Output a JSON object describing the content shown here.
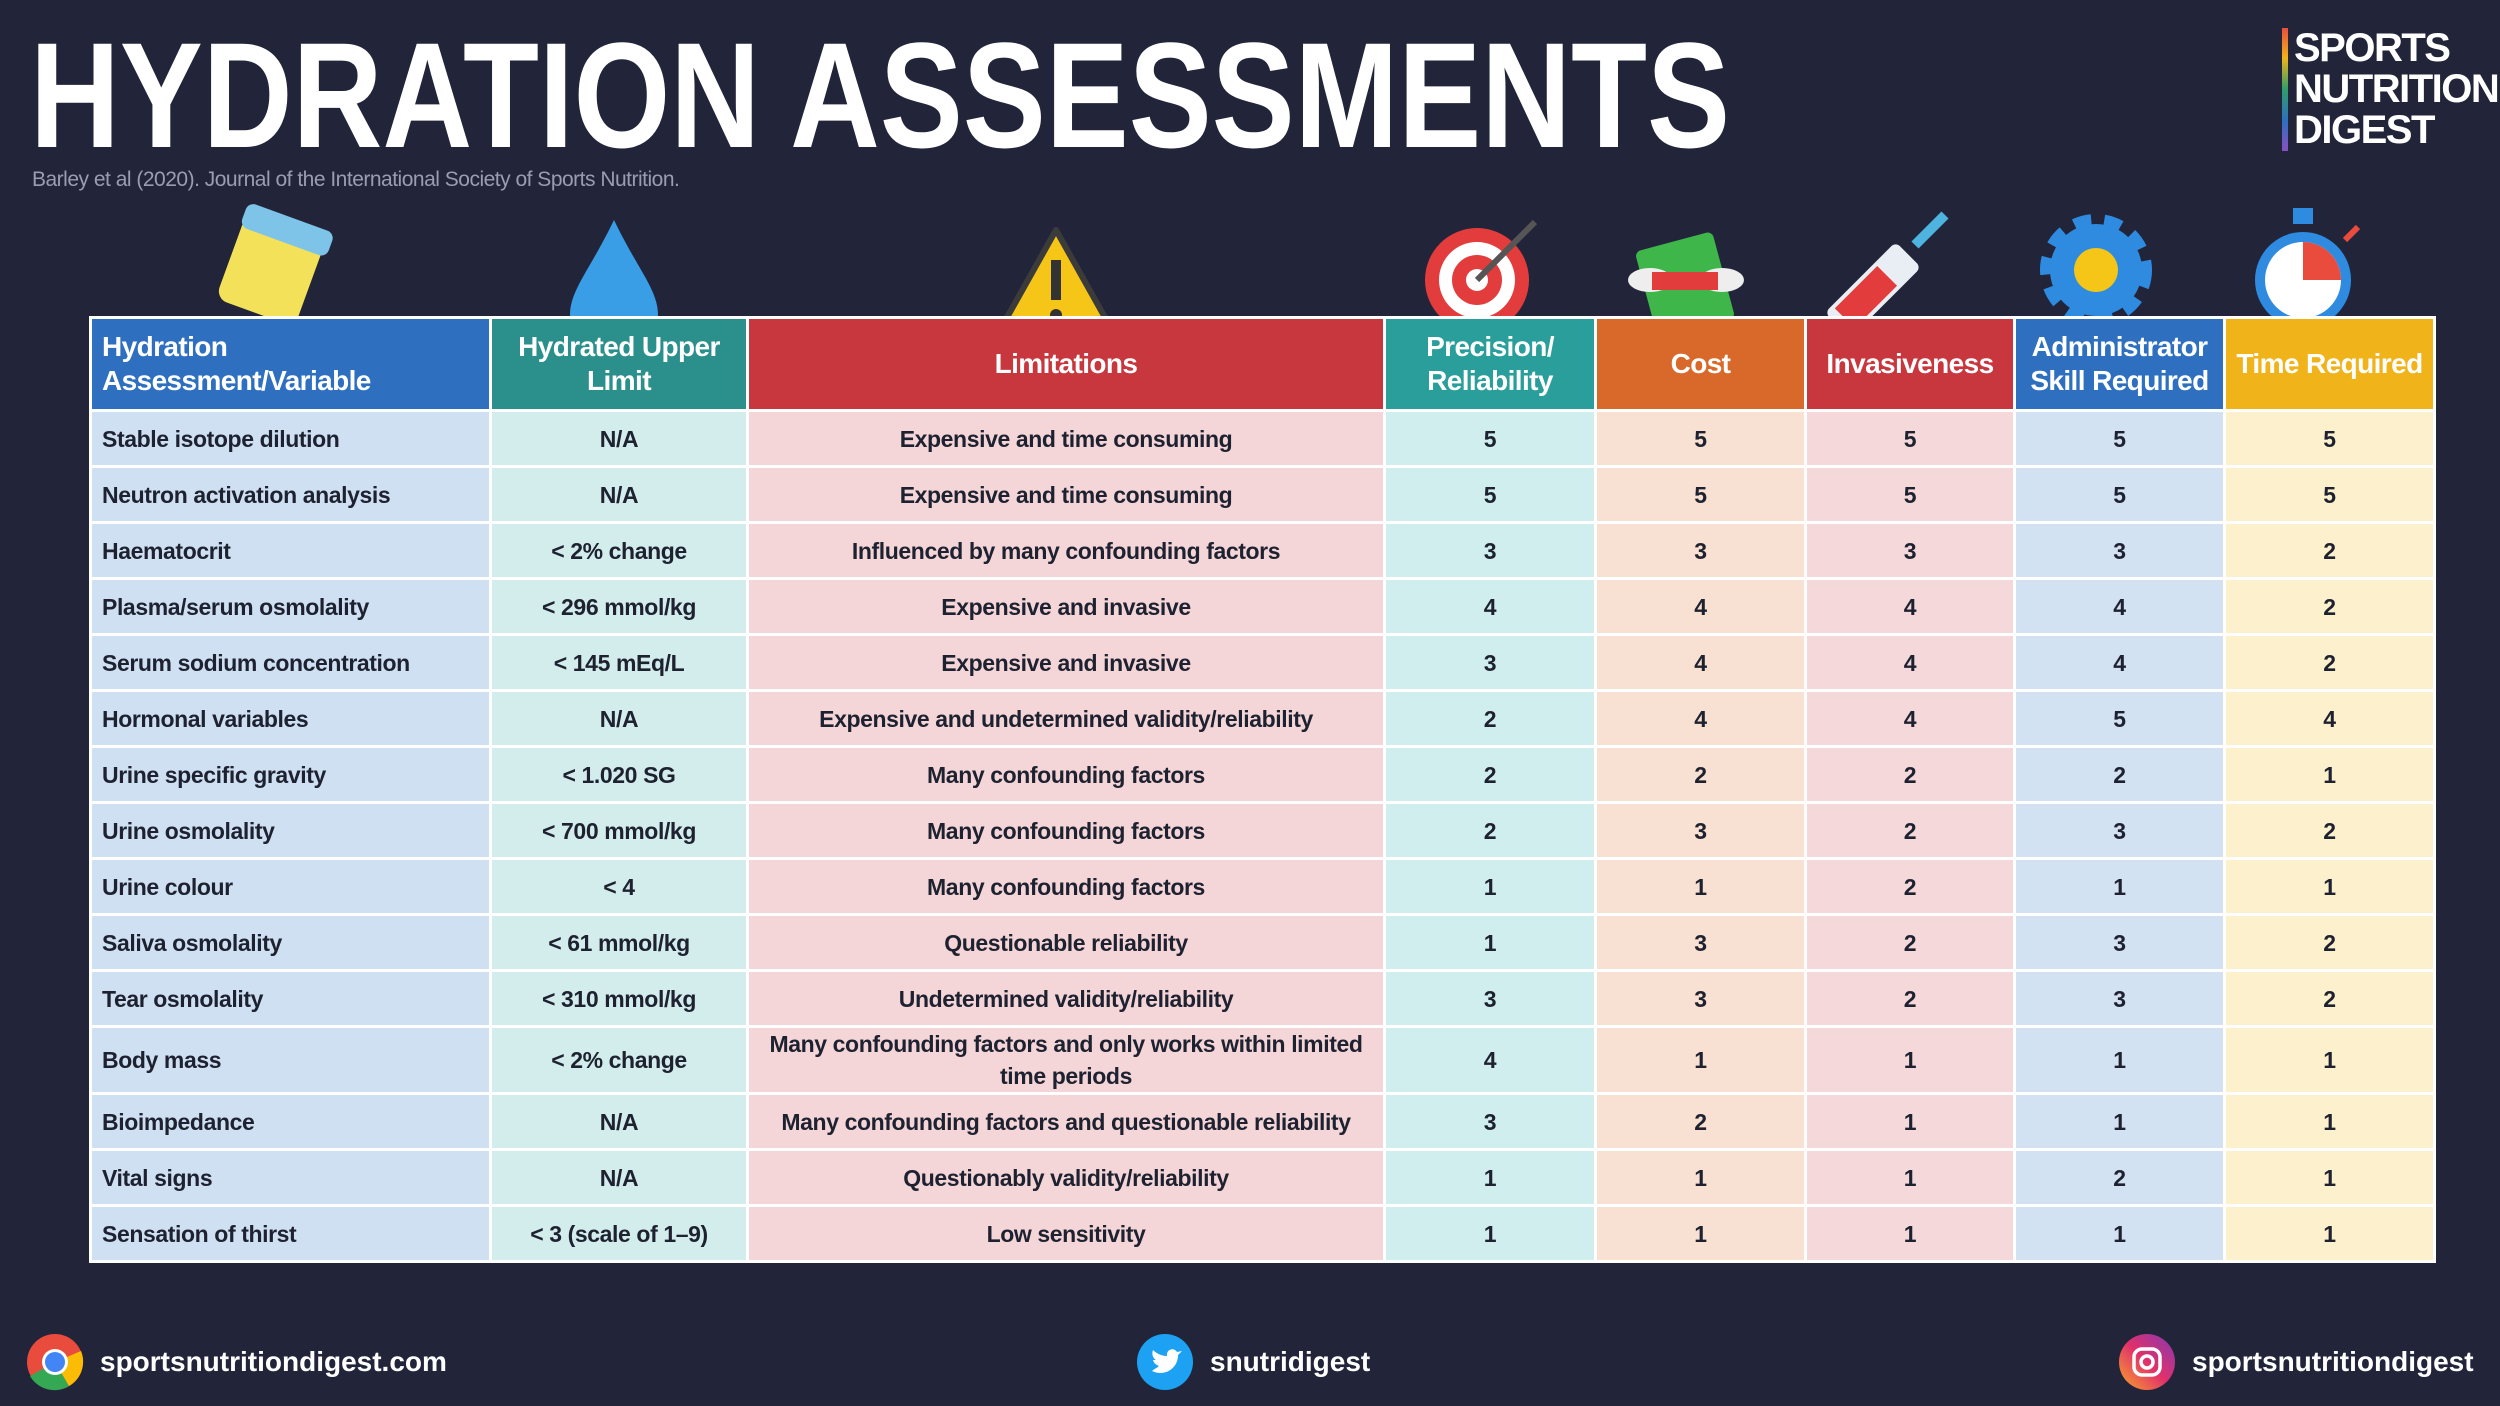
{
  "header": {
    "title": "HYDRATION ASSESSMENTS",
    "subtitle": "Barley et al (2020). Journal of the International Society of Sports Nutrition.",
    "logo": [
      "SPORTS",
      "NUTRITION",
      "DIGEST"
    ]
  },
  "table": {
    "columns": [
      "Hydration Assessment/Variable",
      "Hydrated Upper Limit",
      "Limitations",
      "Precision/ Reliability",
      "Cost",
      "Invasiveness",
      "Administrator Skill Required",
      "Time Required"
    ],
    "rows": [
      [
        "Stable isotope dilution",
        "N/A",
        "Expensive and time consuming",
        5,
        5,
        5,
        5,
        5
      ],
      [
        "Neutron activation analysis",
        "N/A",
        "Expensive and time consuming",
        5,
        5,
        5,
        5,
        5
      ],
      [
        "Haematocrit",
        "< 2% change",
        "Influenced by many confounding factors",
        3,
        3,
        3,
        3,
        2
      ],
      [
        "Plasma/serum osmolality",
        "< 296 mmol/kg",
        "Expensive and invasive",
        4,
        4,
        4,
        4,
        2
      ],
      [
        "Serum sodium concentration",
        "< 145 mEq/L",
        "Expensive and invasive",
        3,
        4,
        4,
        4,
        2
      ],
      [
        "Hormonal variables",
        "N/A",
        "Expensive and undetermined validity/reliability",
        2,
        4,
        4,
        5,
        4
      ],
      [
        "Urine specific gravity",
        "< 1.020 SG",
        "Many confounding factors",
        2,
        2,
        2,
        2,
        1
      ],
      [
        "Urine osmolality",
        "< 700 mmol/kg",
        "Many confounding factors",
        2,
        3,
        2,
        3,
        2
      ],
      [
        "Urine colour",
        "< 4",
        "Many confounding factors",
        1,
        1,
        2,
        1,
        1
      ],
      [
        "Saliva osmolality",
        "< 61 mmol/kg",
        "Questionable reliability",
        1,
        3,
        2,
        3,
        2
      ],
      [
        "Tear osmolality",
        "< 310 mmol/kg",
        "Undetermined validity/reliability",
        3,
        3,
        2,
        3,
        2
      ],
      [
        "Body mass",
        "< 2% change",
        "Many confounding factors and only works within limited time periods",
        4,
        1,
        1,
        1,
        1
      ],
      [
        "Bioimpedance",
        "N/A",
        "Many confounding factors and questionable reliability",
        3,
        2,
        1,
        1,
        1
      ],
      [
        "Vital signs",
        "N/A",
        "Questionably validity/reliability",
        1,
        1,
        1,
        2,
        1
      ],
      [
        "Sensation of thirst",
        "< 3 (scale of 1–9)",
        "Low sensitivity",
        1,
        1,
        1,
        1,
        1
      ]
    ]
  },
  "footer": {
    "website": "sportsnutritiondigest.com",
    "twitter": "snutridigest",
    "instagram": "sportsnutritiondigest"
  }
}
